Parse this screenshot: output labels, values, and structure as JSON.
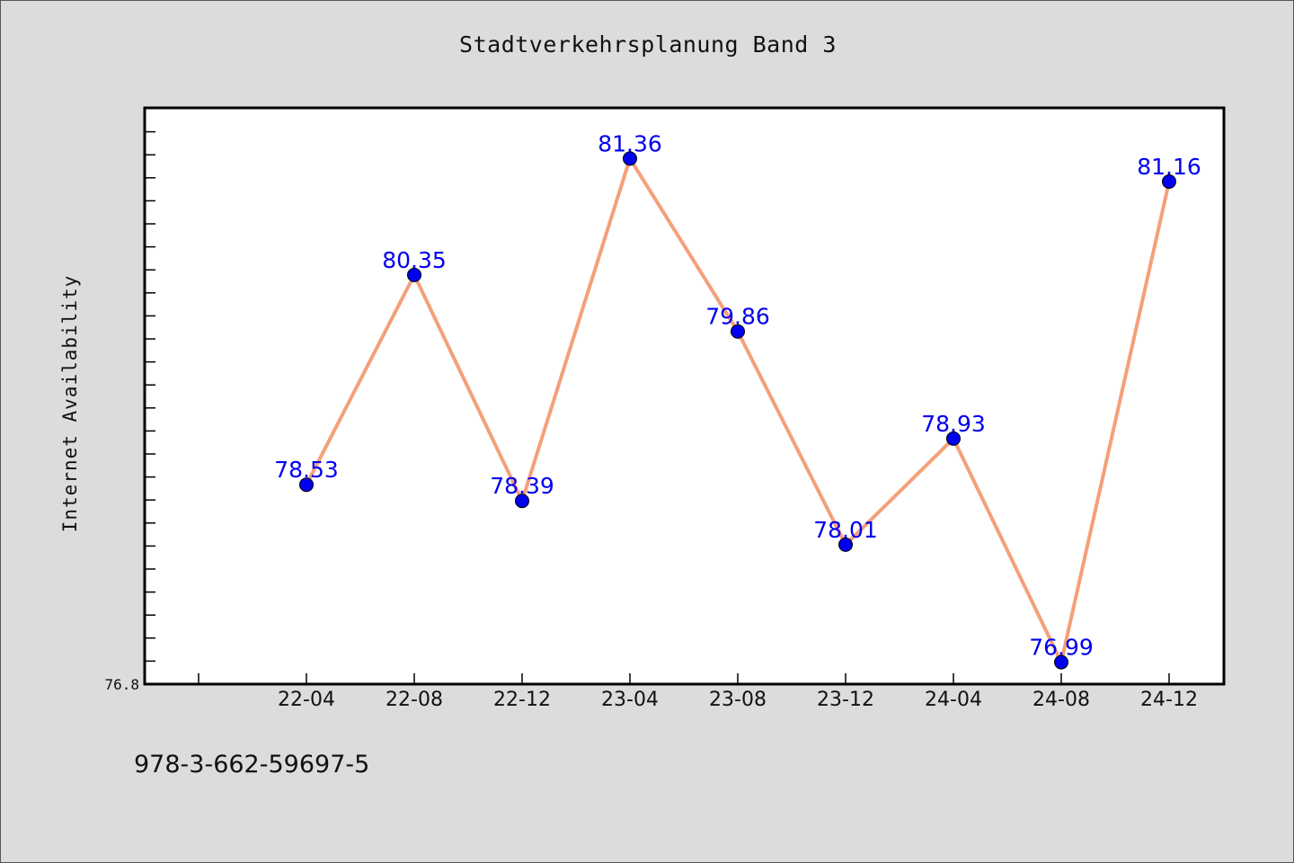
{
  "chart_data": {
    "type": "line",
    "title": "Stadtverkehrsplanung Band 3",
    "ylabel": "Internet Availability",
    "xlabel": "",
    "categories": [
      "22-04",
      "22-08",
      "22-12",
      "23-04",
      "23-08",
      "23-12",
      "24-04",
      "24-08",
      "24-12"
    ],
    "series": [
      {
        "values": [
          78.53,
          80.35,
          78.39,
          81.36,
          79.86,
          78.01,
          78.93,
          76.99,
          81.16
        ],
        "labels": [
          "78.53",
          "80.35",
          "78.39",
          "81.36",
          "79.86",
          "78.01",
          "78.93",
          "76.99",
          "81.16"
        ],
        "line_color": "#f4a07a",
        "marker_color": "#0000ee",
        "label_color": "#0000ee"
      }
    ],
    "ylim": [
      76.8,
      81.8
    ],
    "y_tick_label": "76.8",
    "grid": false,
    "legend": "none",
    "plot_background": "#ffffff",
    "page_background": "#dcdcdc"
  },
  "footer": {
    "isbn": "978-3-662-59697-5"
  }
}
